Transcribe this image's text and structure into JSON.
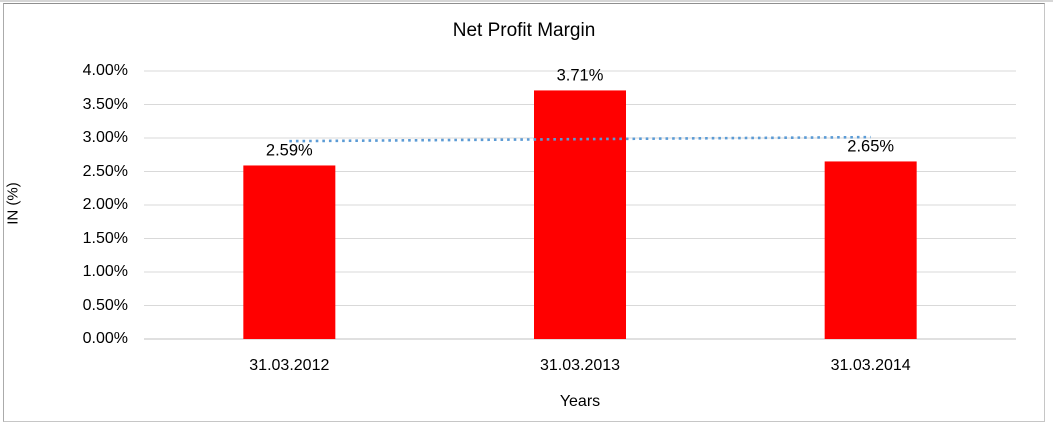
{
  "chart_data": {
    "type": "bar",
    "title": "Net Profit Margin",
    "categories": [
      "31.03.2012",
      "31.03.2013",
      "31.03.2014"
    ],
    "series": [
      {
        "name": "Net Profit Margin",
        "values": [
          2.59,
          3.71,
          2.65
        ]
      }
    ],
    "data_labels": [
      "2.59%",
      "3.71%",
      "2.65%"
    ],
    "xlabel": "Years",
    "ylabel": "IN (%)",
    "ylim": [
      0,
      4
    ],
    "ytick_step": 0.5,
    "ytick_labels": [
      "0.00%",
      "0.50%",
      "1.00%",
      "1.50%",
      "2.00%",
      "2.50%",
      "3.00%",
      "3.50%",
      "4.00%"
    ],
    "grid": true,
    "legend": "none",
    "bar_color": "#ff0000",
    "trendline": {
      "type": "linear",
      "style": "dotted",
      "color": "#5b9bd5",
      "values": [
        2.953,
        2.983,
        3.013
      ]
    },
    "colors": {
      "gridline": "#d9d9d9",
      "axis_line": "#c0c0c0",
      "text": "#000000",
      "plot_background": "#ffffff"
    }
  }
}
